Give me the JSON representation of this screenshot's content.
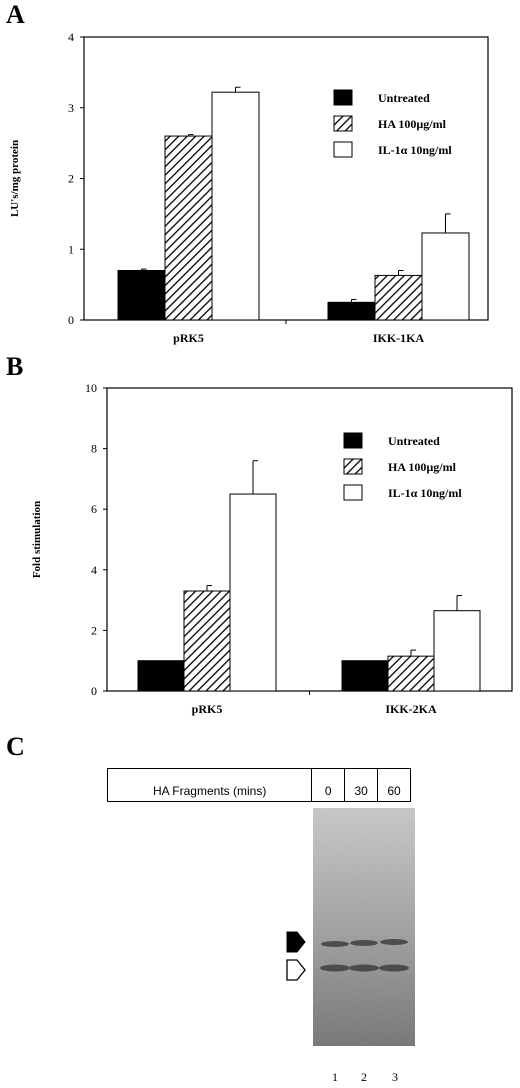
{
  "panels": {
    "a_letter": "A",
    "b_letter": "B",
    "c_letter": "C"
  },
  "legend": [
    {
      "label": "Untreated",
      "fill": "solid",
      "color": "#000000"
    },
    {
      "label": "HA 100µg/ml",
      "fill": "hatched",
      "color": "#000000"
    },
    {
      "label": "IL-1α 10ng/ml",
      "fill": "open",
      "color": "#ffffff"
    }
  ],
  "chart_data": [
    {
      "type": "bar",
      "panel": "A",
      "ylabel": "LU's/mg protein",
      "ylim": [
        0,
        4
      ],
      "yticks": [
        0,
        1,
        2,
        3,
        4
      ],
      "categories": [
        "pRK5",
        "IKK-1KA"
      ],
      "series": [
        {
          "name": "Untreated",
          "values": [
            0.7,
            0.25
          ],
          "errors": [
            0.02,
            0.04
          ]
        },
        {
          "name": "HA 100µg/ml",
          "values": [
            2.6,
            0.63
          ],
          "errors": [
            0.02,
            0.07
          ]
        },
        {
          "name": "IL-1α 10ng/ml",
          "values": [
            3.22,
            1.23
          ],
          "errors": [
            0.07,
            0.27
          ]
        }
      ],
      "legend_position": "top-right"
    },
    {
      "type": "bar",
      "panel": "B",
      "ylabel": "Fold stimulation",
      "ylim": [
        0,
        10
      ],
      "yticks": [
        0,
        2,
        4,
        6,
        8,
        10
      ],
      "categories": [
        "pRK5",
        "IKK-2KA"
      ],
      "series": [
        {
          "name": "Untreated",
          "values": [
            1.0,
            1.0
          ],
          "errors": [
            0,
            0
          ]
        },
        {
          "name": "HA 100µg/ml",
          "values": [
            3.3,
            1.15
          ],
          "errors": [
            0.18,
            0.2
          ]
        },
        {
          "name": "IL-1α 10ng/ml",
          "values": [
            6.5,
            2.65
          ],
          "errors": [
            1.1,
            0.5
          ]
        }
      ],
      "legend_position": "top-right"
    }
  ],
  "gel": {
    "header_label": "HA Fragments (mins)",
    "time_points": [
      "0",
      "30",
      "60"
    ],
    "lane_numbers": [
      "1",
      "2",
      "3"
    ]
  }
}
